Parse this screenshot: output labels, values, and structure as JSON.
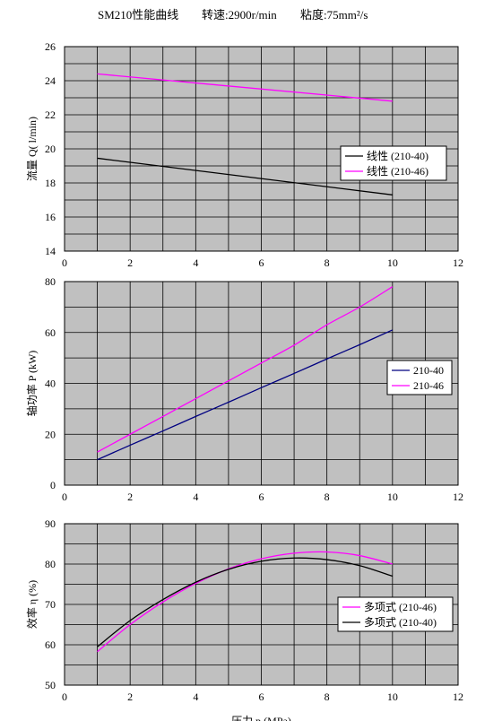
{
  "header": {
    "model": "SM210性能曲线",
    "speed": "转速:2900r/min",
    "viscosity": "粘度:75mm²/s"
  },
  "colors": {
    "plot_bg": "#c0c0c0",
    "grid": "#000000",
    "series_black": "#000000",
    "series_magenta": "#ff00ff",
    "series_navy": "#000080"
  },
  "chart_data": [
    {
      "type": "line",
      "ylabel": "流量 Q( l/min)",
      "xlabel": "",
      "xlim": [
        0,
        12
      ],
      "ylim": [
        14,
        26
      ],
      "xticks": [
        0,
        2,
        4,
        6,
        8,
        10,
        12
      ],
      "yticks": [
        14,
        16,
        18,
        20,
        22,
        24,
        26
      ],
      "grid": true,
      "legend_position": "right-middle",
      "series": [
        {
          "name": "线性 (210-40)",
          "color": "#000000",
          "x": [
            1,
            10
          ],
          "values": [
            19.45,
            17.3
          ]
        },
        {
          "name": "线性 (210-46)",
          "color": "#ff00ff",
          "x": [
            1,
            10
          ],
          "values": [
            24.4,
            22.8
          ]
        }
      ]
    },
    {
      "type": "line",
      "ylabel": "轴功率 P (kW)",
      "xlabel": "",
      "xlim": [
        0,
        12
      ],
      "ylim": [
        0,
        80
      ],
      "xticks": [
        0,
        2,
        4,
        6,
        8,
        10,
        12
      ],
      "yticks": [
        0,
        20,
        40,
        60,
        80
      ],
      "grid": true,
      "legend_position": "right-middle",
      "series": [
        {
          "name": "210-40",
          "color": "#000080",
          "x": [
            1,
            2,
            3,
            4,
            5,
            6,
            7,
            8,
            9,
            10
          ],
          "values": [
            10,
            15.7,
            21.3,
            27,
            32.6,
            38.3,
            43.9,
            49.6,
            55.2,
            61
          ]
        },
        {
          "name": "210-46",
          "color": "#ff00ff",
          "x": [
            1,
            2,
            3,
            4,
            5,
            6,
            7,
            8,
            9,
            10
          ],
          "values": [
            13,
            20,
            27,
            34,
            41,
            48,
            55,
            63,
            70,
            78
          ]
        }
      ]
    },
    {
      "type": "line",
      "ylabel": "效率 η (%)",
      "xlabel": "压力 p (MPa)",
      "xlim": [
        0,
        12
      ],
      "ylim": [
        50,
        90
      ],
      "xticks": [
        0,
        2,
        4,
        6,
        8,
        10,
        12
      ],
      "yticks": [
        50,
        60,
        70,
        80,
        90
      ],
      "grid": true,
      "legend_position": "right-bottom",
      "series": [
        {
          "name": "多项式 (210-46)",
          "color": "#ff00ff",
          "x": [
            1,
            2,
            3,
            4,
            5,
            6,
            7,
            8,
            9,
            10
          ],
          "values": [
            58.3,
            65.0,
            70.6,
            75.2,
            78.8,
            81.3,
            82.7,
            83.0,
            82.1,
            80.0
          ]
        },
        {
          "name": "多项式 (210-40)",
          "color": "#000000",
          "x": [
            1,
            2,
            3,
            4,
            5,
            6,
            7,
            8,
            9,
            10
          ],
          "values": [
            59.5,
            66.0,
            71.2,
            75.5,
            78.7,
            80.7,
            81.5,
            81.1,
            79.6,
            77.0
          ]
        }
      ]
    }
  ]
}
